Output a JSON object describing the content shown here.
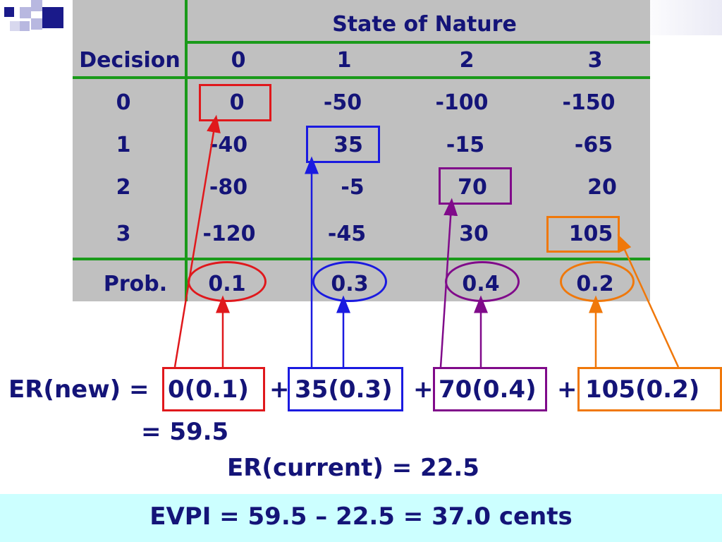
{
  "header": {
    "state_of_nature": "State of Nature",
    "decision": "Decision",
    "states": [
      "0",
      "1",
      "2",
      "3"
    ]
  },
  "rows": [
    {
      "decision": "0",
      "values": [
        "0",
        "-50",
        "-100",
        "-150"
      ]
    },
    {
      "decision": "1",
      "values": [
        "-40",
        "35",
        "-15",
        "-65"
      ]
    },
    {
      "decision": "2",
      "values": [
        "-80",
        "-5",
        "70",
        "20"
      ]
    },
    {
      "decision": "3",
      "values": [
        "-120",
        "-45",
        "30",
        "105"
      ]
    }
  ],
  "prob": {
    "label": "Prob.",
    "values": [
      "0.1",
      "0.3",
      "0.4",
      "0.2"
    ]
  },
  "equation": {
    "er_new_label": "ER(new) =",
    "terms": [
      "0(0.1)",
      "35(0.3)",
      "70(0.4)",
      "105(0.2)"
    ],
    "plus": "+",
    "result": "= 59.5",
    "er_current": "ER(current) = 22.5"
  },
  "evpi": "EVPI = 59.5 – 22.5 = 37.0 cents",
  "colors": {
    "text": "#141478",
    "table_bg": "#c0c0c0",
    "grid": "#1a9a1a",
    "red": "#e0181c",
    "blue": "#1a1ae0",
    "purple": "#800a8a",
    "orange": "#f0780a",
    "evpi_bg": "#ccffff"
  }
}
